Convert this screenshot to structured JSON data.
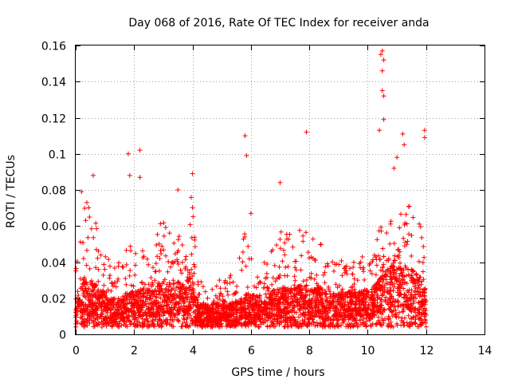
{
  "chart_data": {
    "type": "scatter",
    "title": "Day 068 of 2016, Rate Of TEC Index for receiver anda",
    "xlabel": "GPS time / hours",
    "ylabel": "ROTI / TECUs",
    "xlim": [
      0,
      14
    ],
    "ylim": [
      0,
      0.16
    ],
    "xticks": [
      "0",
      "2",
      "4",
      "6",
      "8",
      "10",
      "12",
      "14"
    ],
    "yticks": [
      "0",
      "0.02",
      "0.04",
      "0.06",
      "0.08",
      "0.1",
      "0.12",
      "0.14",
      "0.16"
    ],
    "grid": true,
    "marker": "+",
    "color": "#ff0000",
    "series": [
      {
        "name": "ROTI",
        "profile": [
          {
            "x": 0.0,
            "base": 0.015,
            "peak": 0.035
          },
          {
            "x": 0.25,
            "base": 0.02,
            "peak": 0.075
          },
          {
            "x": 0.5,
            "base": 0.02,
            "peak": 0.085
          },
          {
            "x": 0.8,
            "base": 0.018,
            "peak": 0.05
          },
          {
            "x": 1.2,
            "base": 0.014,
            "peak": 0.04
          },
          {
            "x": 1.5,
            "base": 0.014,
            "peak": 0.04
          },
          {
            "x": 1.8,
            "base": 0.016,
            "peak": 0.055
          },
          {
            "x": 2.2,
            "base": 0.017,
            "peak": 0.05
          },
          {
            "x": 2.6,
            "base": 0.017,
            "peak": 0.04
          },
          {
            "x": 2.9,
            "base": 0.02,
            "peak": 0.065
          },
          {
            "x": 3.3,
            "base": 0.019,
            "peak": 0.055
          },
          {
            "x": 3.7,
            "base": 0.02,
            "peak": 0.06
          },
          {
            "x": 4.0,
            "base": 0.022,
            "peak": 0.08
          },
          {
            "x": 4.2,
            "base": 0.012,
            "peak": 0.03
          },
          {
            "x": 4.6,
            "base": 0.012,
            "peak": 0.03
          },
          {
            "x": 5.0,
            "base": 0.012,
            "peak": 0.03
          },
          {
            "x": 5.5,
            "base": 0.013,
            "peak": 0.035
          },
          {
            "x": 5.8,
            "base": 0.016,
            "peak": 0.06
          },
          {
            "x": 6.2,
            "base": 0.015,
            "peak": 0.035
          },
          {
            "x": 6.6,
            "base": 0.016,
            "peak": 0.045
          },
          {
            "x": 7.0,
            "base": 0.018,
            "peak": 0.06
          },
          {
            "x": 7.4,
            "base": 0.018,
            "peak": 0.055
          },
          {
            "x": 7.8,
            "base": 0.019,
            "peak": 0.06
          },
          {
            "x": 8.2,
            "base": 0.018,
            "peak": 0.055
          },
          {
            "x": 8.6,
            "base": 0.017,
            "peak": 0.045
          },
          {
            "x": 9.0,
            "base": 0.016,
            "peak": 0.04
          },
          {
            "x": 9.4,
            "base": 0.017,
            "peak": 0.045
          },
          {
            "x": 9.8,
            "base": 0.017,
            "peak": 0.045
          },
          {
            "x": 10.2,
            "base": 0.018,
            "peak": 0.045
          },
          {
            "x": 10.5,
            "base": 0.022,
            "peak": 0.07
          },
          {
            "x": 10.8,
            "base": 0.025,
            "peak": 0.065
          },
          {
            "x": 11.2,
            "base": 0.026,
            "peak": 0.075
          },
          {
            "x": 11.6,
            "base": 0.024,
            "peak": 0.07
          },
          {
            "x": 11.9,
            "base": 0.02,
            "peak": 0.06
          },
          {
            "x": 12.0,
            "base": 0.015,
            "peak": 0.04
          }
        ],
        "outliers": [
          {
            "x": 1.8,
            "y": 0.1
          },
          {
            "x": 2.2,
            "y": 0.102
          },
          {
            "x": 1.85,
            "y": 0.088
          },
          {
            "x": 2.2,
            "y": 0.087
          },
          {
            "x": 4.0,
            "y": 0.089
          },
          {
            "x": 5.8,
            "y": 0.11
          },
          {
            "x": 5.85,
            "y": 0.099
          },
          {
            "x": 7.9,
            "y": 0.112
          },
          {
            "x": 10.45,
            "y": 0.155
          },
          {
            "x": 10.5,
            "y": 0.157
          },
          {
            "x": 10.55,
            "y": 0.152
          },
          {
            "x": 10.5,
            "y": 0.146
          },
          {
            "x": 10.5,
            "y": 0.135
          },
          {
            "x": 10.55,
            "y": 0.132
          },
          {
            "x": 10.55,
            "y": 0.119
          },
          {
            "x": 10.4,
            "y": 0.113
          },
          {
            "x": 11.2,
            "y": 0.111
          },
          {
            "x": 11.25,
            "y": 0.105
          },
          {
            "x": 11.95,
            "y": 0.113
          },
          {
            "x": 11.95,
            "y": 0.109
          },
          {
            "x": 0.6,
            "y": 0.088
          },
          {
            "x": 0.2,
            "y": 0.079
          },
          {
            "x": 3.5,
            "y": 0.08
          },
          {
            "x": 6.0,
            "y": 0.067
          },
          {
            "x": 7.0,
            "y": 0.084
          },
          {
            "x": 10.9,
            "y": 0.092
          },
          {
            "x": 11.0,
            "y": 0.098
          }
        ]
      }
    ]
  }
}
